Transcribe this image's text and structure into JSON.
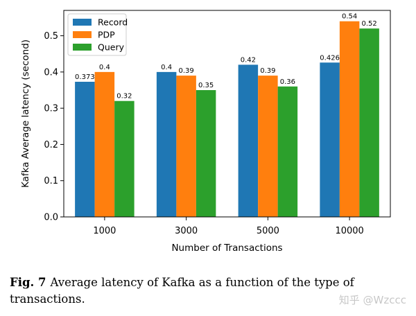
{
  "chart_data": {
    "type": "bar",
    "categories": [
      "1000",
      "3000",
      "5000",
      "10000"
    ],
    "series": [
      {
        "name": "Record",
        "color": "#1f77b4",
        "values": [
          0.373,
          0.4,
          0.42,
          0.426
        ],
        "labels": [
          "0.373",
          "0.4",
          "0.42",
          "0.426"
        ]
      },
      {
        "name": "PDP",
        "color": "#ff7f0e",
        "values": [
          0.4,
          0.39,
          0.39,
          0.54
        ],
        "labels": [
          "0.4",
          "0.39",
          "0.39",
          "0.54"
        ]
      },
      {
        "name": "Query",
        "color": "#2ca02c",
        "values": [
          0.32,
          0.35,
          0.36,
          0.52
        ],
        "labels": [
          "0.32",
          "0.35",
          "0.36",
          "0.52"
        ]
      }
    ],
    "xlabel": "Number of Transactions",
    "ylabel": "Kafka Average latency (second)",
    "ylim": [
      0.0,
      0.57
    ],
    "yticks": [
      "0.0",
      "0.1",
      "0.2",
      "0.3",
      "0.4",
      "0.5"
    ],
    "legend": "top-left",
    "grid": false
  },
  "caption": {
    "number": "Fig. 7",
    "text": "Average latency of Kafka as a function of the type of transactions."
  },
  "watermark": "知乎 @Wzccc"
}
